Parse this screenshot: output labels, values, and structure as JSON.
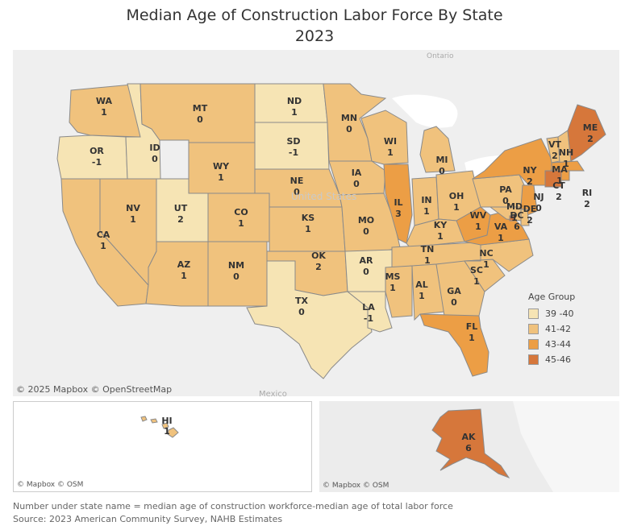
{
  "title": "Median Age of Construction Labor Force By State",
  "subtitle": "2023",
  "attribution_main": "© 2025 Mapbox © OpenStreetMap",
  "attribution_small": "© Mapbox © OSM",
  "basemap_labels": {
    "ontario": "Ontario",
    "united_states": "United States",
    "mexico": "Mexico"
  },
  "legend": {
    "title": "Age Group",
    "items": [
      {
        "label": "39 -40",
        "color": "#f6e4b4"
      },
      {
        "label": "41-42",
        "color": "#f0c27d"
      },
      {
        "label": "43-44",
        "color": "#ec9e45"
      },
      {
        "label": "45-46",
        "color": "#d6773b"
      }
    ]
  },
  "states": [
    {
      "abbr": "WA",
      "value": "1",
      "group": "41-42"
    },
    {
      "abbr": "OR",
      "value": "-1",
      "group": "39 -40"
    },
    {
      "abbr": "ID",
      "value": "0",
      "group": "39 -40"
    },
    {
      "abbr": "MT",
      "value": "0",
      "group": "41-42"
    },
    {
      "abbr": "WY",
      "value": "1",
      "group": "41-42"
    },
    {
      "abbr": "ND",
      "value": "1",
      "group": "39 -40"
    },
    {
      "abbr": "SD",
      "value": "-1",
      "group": "39 -40"
    },
    {
      "abbr": "NE",
      "value": "0",
      "group": "41-42"
    },
    {
      "abbr": "MN",
      "value": "0",
      "group": "41-42"
    },
    {
      "abbr": "WI",
      "value": "1",
      "group": "41-42"
    },
    {
      "abbr": "MI",
      "value": "0",
      "group": "41-42"
    },
    {
      "abbr": "IA",
      "value": "0",
      "group": "41-42"
    },
    {
      "abbr": "IL",
      "value": "3",
      "group": "43-44"
    },
    {
      "abbr": "IN",
      "value": "1",
      "group": "41-42"
    },
    {
      "abbr": "OH",
      "value": "1",
      "group": "41-42"
    },
    {
      "abbr": "PA",
      "value": "0",
      "group": "41-42"
    },
    {
      "abbr": "NY",
      "value": "2",
      "group": "43-44"
    },
    {
      "abbr": "VT",
      "value": "2",
      "group": "41-42"
    },
    {
      "abbr": "NH",
      "value": "1",
      "group": "41-42"
    },
    {
      "abbr": "ME",
      "value": "2",
      "group": "45-46"
    },
    {
      "abbr": "MA",
      "value": "1",
      "group": "43-44"
    },
    {
      "abbr": "CT",
      "value": "2",
      "group": "45-46"
    },
    {
      "abbr": "RI",
      "value": "2",
      "group": "43-44"
    },
    {
      "abbr": "NJ",
      "value": "0",
      "group": "43-44"
    },
    {
      "abbr": "DE",
      "value": "2",
      "group": "41-42"
    },
    {
      "abbr": "MD",
      "value": "1",
      "group": "41-42"
    },
    {
      "abbr": "DC",
      "value": "6",
      "group": "45-46"
    },
    {
      "abbr": "NV",
      "value": "1",
      "group": "41-42"
    },
    {
      "abbr": "CA",
      "value": "1",
      "group": "41-42"
    },
    {
      "abbr": "UT",
      "value": "2",
      "group": "39 -40"
    },
    {
      "abbr": "CO",
      "value": "1",
      "group": "41-42"
    },
    {
      "abbr": "AZ",
      "value": "1",
      "group": "41-42"
    },
    {
      "abbr": "NM",
      "value": "0",
      "group": "41-42"
    },
    {
      "abbr": "KS",
      "value": "1",
      "group": "41-42"
    },
    {
      "abbr": "MO",
      "value": "0",
      "group": "41-42"
    },
    {
      "abbr": "KY",
      "value": "1",
      "group": "41-42"
    },
    {
      "abbr": "WV",
      "value": "1",
      "group": "43-44"
    },
    {
      "abbr": "VA",
      "value": "1",
      "group": "43-44"
    },
    {
      "abbr": "OK",
      "value": "2",
      "group": "41-42"
    },
    {
      "abbr": "AR",
      "value": "0",
      "group": "39 -40"
    },
    {
      "abbr": "TN",
      "value": "1",
      "group": "41-42"
    },
    {
      "abbr": "NC",
      "value": "1",
      "group": "41-42"
    },
    {
      "abbr": "SC",
      "value": "1",
      "group": "41-42"
    },
    {
      "abbr": "MS",
      "value": "1",
      "group": "41-42"
    },
    {
      "abbr": "AL",
      "value": "1",
      "group": "41-42"
    },
    {
      "abbr": "GA",
      "value": "0",
      "group": "41-42"
    },
    {
      "abbr": "TX",
      "value": "0",
      "group": "39 -40"
    },
    {
      "abbr": "LA",
      "value": "-1",
      "group": "39 -40"
    },
    {
      "abbr": "FL",
      "value": "1",
      "group": "43-44"
    },
    {
      "abbr": "HI",
      "value": "1",
      "group": "41-42"
    },
    {
      "abbr": "AK",
      "value": "6",
      "group": "45-46"
    }
  ],
  "footnote_1": "Number under state name = median age of construction workforce-median age of total labor force",
  "footnote_2": "Source: 2023 American Community Survey, NAHB Estimates"
}
